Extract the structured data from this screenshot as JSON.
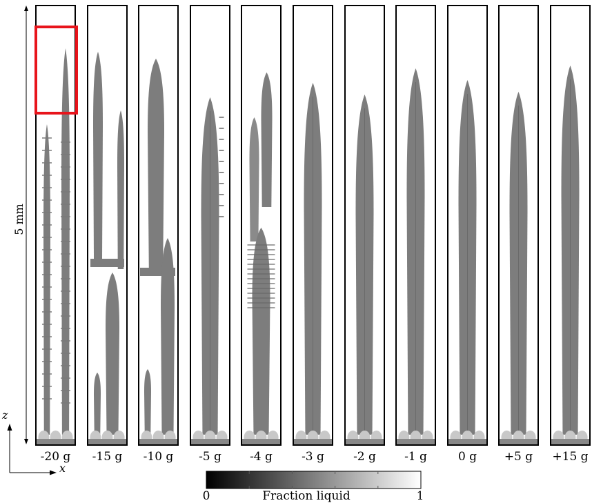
{
  "scale_label": "5 mm",
  "axis": {
    "z": "z",
    "x": "x"
  },
  "panels": [
    {
      "label": "-20 g",
      "style": "broken"
    },
    {
      "label": "-15 g",
      "style": "broken"
    },
    {
      "label": "-10 g",
      "style": "broken"
    },
    {
      "label": "-5 g",
      "style": "full"
    },
    {
      "label": "-4 g",
      "style": "split"
    },
    {
      "label": "-3 g",
      "style": "full"
    },
    {
      "label": "-2 g",
      "style": "full"
    },
    {
      "label": "-1 g",
      "style": "full"
    },
    {
      "label": "0 g",
      "style": "full"
    },
    {
      "label": "+5 g",
      "style": "full"
    },
    {
      "label": "+15 g",
      "style": "full"
    }
  ],
  "colorbar": {
    "min_label": "0",
    "max_label": "1",
    "title": "Fraction liquid"
  },
  "colors": {
    "highlight": "#e8141b",
    "dendrite": "#7d7d7d",
    "frame": "#000000"
  }
}
